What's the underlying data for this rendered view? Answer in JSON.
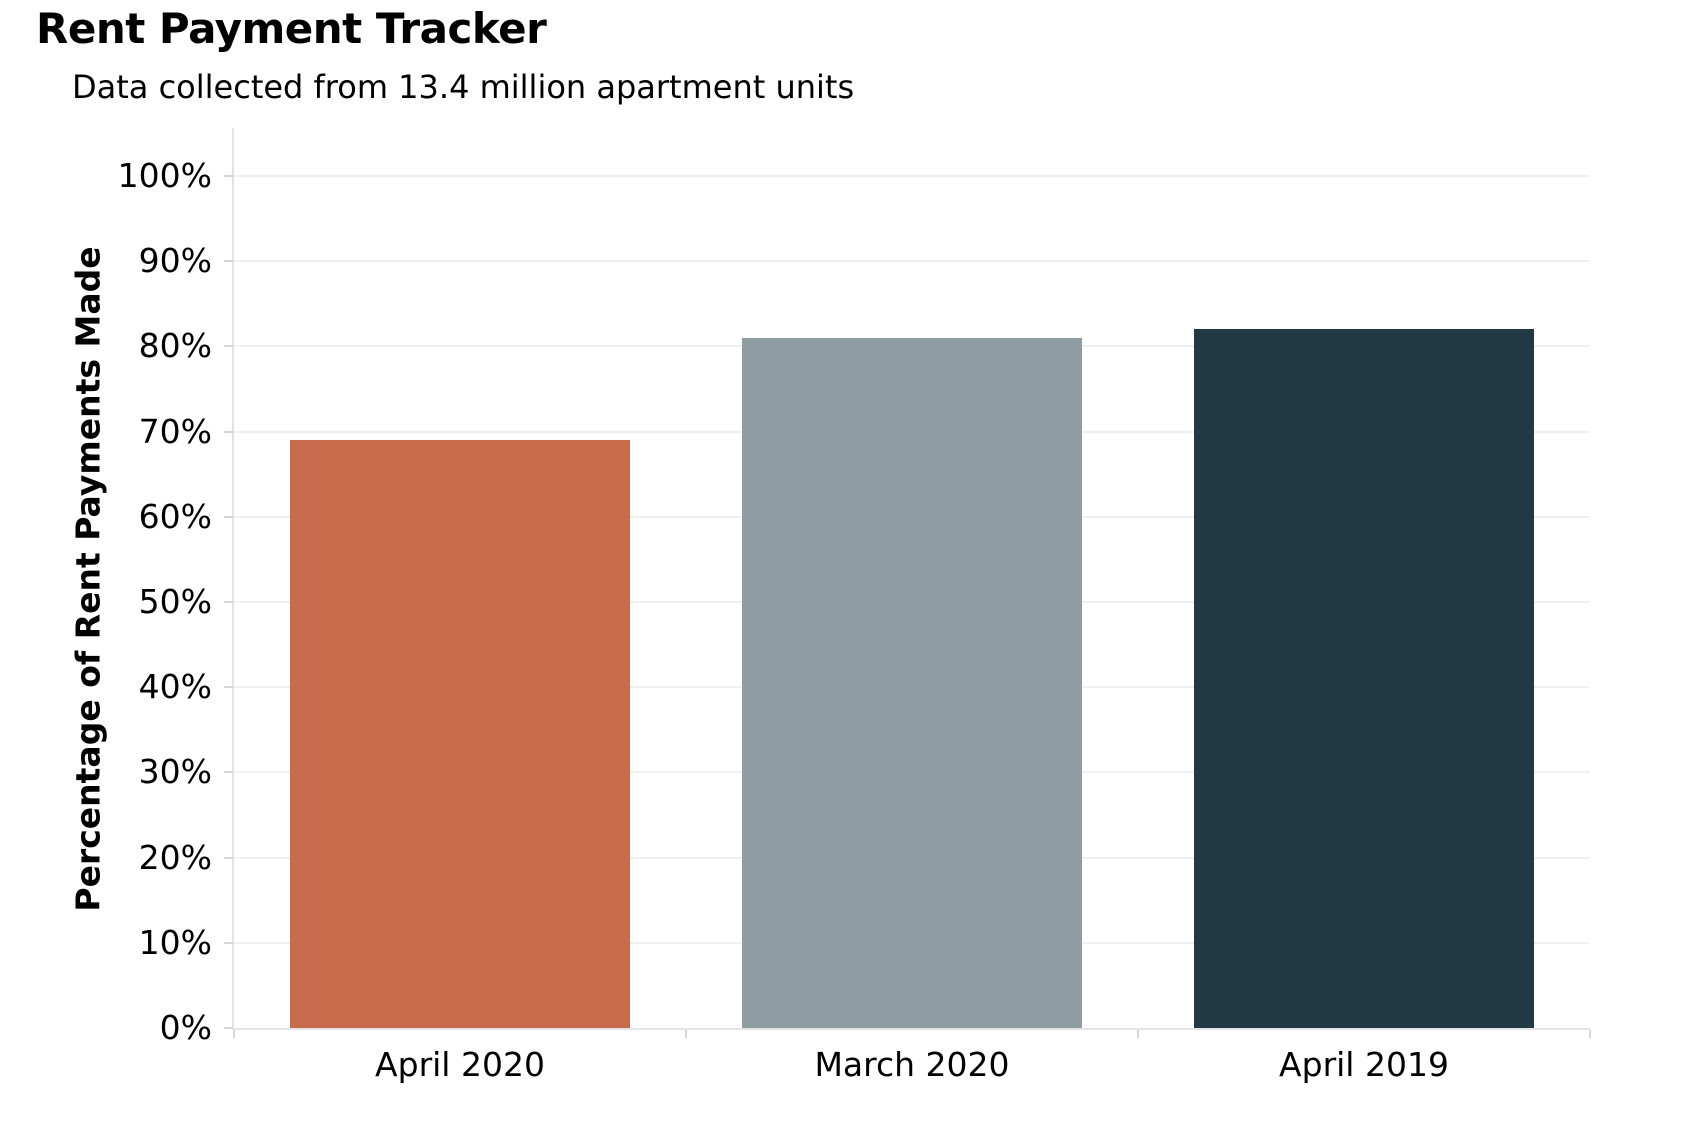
{
  "header": {
    "title": "Rent Payment Tracker",
    "subtitle": "Data collected from 13.4 million apartment units"
  },
  "chart_data": {
    "type": "bar",
    "title": "Rent Payment Tracker",
    "subtitle": "Data collected from 13.4 million apartment units",
    "categories": [
      "April 2020",
      "March 2020",
      "April 2019"
    ],
    "values": [
      69,
      81,
      82
    ],
    "xlabel": "",
    "ylabel": "Percentage of Rent Payments Made",
    "ylim": [
      0,
      100
    ],
    "ytick_step": 10,
    "ytick_labels": [
      "0%",
      "10%",
      "20%",
      "30%",
      "40%",
      "50%",
      "60%",
      "70%",
      "80%",
      "90%",
      "100%"
    ],
    "grid": true,
    "legend": false,
    "bar_colors": [
      "#C76B4D",
      "#8F9DA3",
      "#213944"
    ]
  },
  "colors": {
    "background": "#FFFFFF",
    "text": "#000000",
    "gridline": "#F0F0F0",
    "axis_line": "#E3E3E3",
    "tick_mark": "#D7D7D7",
    "bar_april_2020": "#C76B4D",
    "bar_march_2020": "#8F9DA3",
    "bar_april_2019": "#213944"
  }
}
